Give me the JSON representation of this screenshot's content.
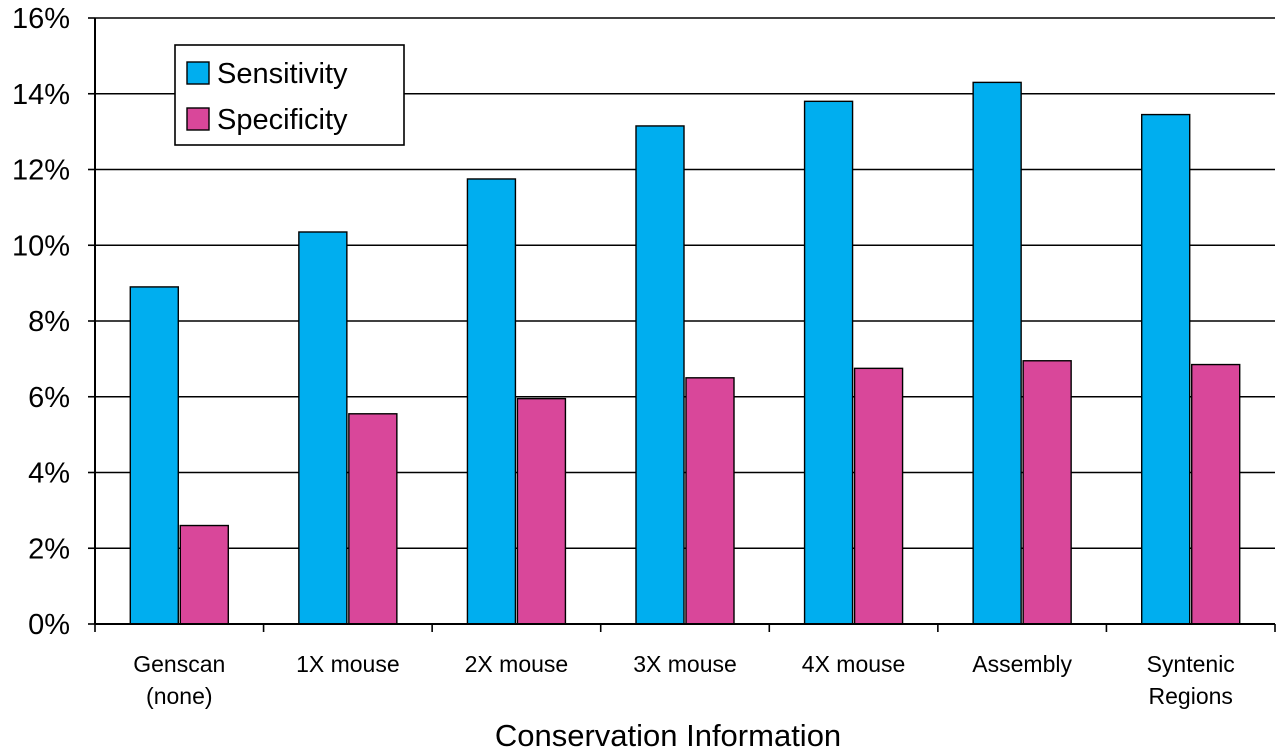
{
  "chart_data": {
    "type": "bar",
    "xlabel": "Conservation Information",
    "ylabel": "",
    "title": "",
    "ylim": [
      0,
      16
    ],
    "y_unit": "%",
    "yticks": [
      "0%",
      "2%",
      "4%",
      "6%",
      "8%",
      "10%",
      "12%",
      "14%",
      "16%"
    ],
    "grid": "horizontal",
    "legend_position": "top-left",
    "categories": [
      [
        "Genscan",
        "(none)"
      ],
      [
        "1X mouse"
      ],
      [
        "2X mouse"
      ],
      [
        "3X mouse"
      ],
      [
        "4X mouse"
      ],
      [
        "Assembly"
      ],
      [
        "Syntenic",
        "Regions"
      ]
    ],
    "series": [
      {
        "name": "Sensitivity",
        "color": "#00aeef",
        "values": [
          8.9,
          10.35,
          11.75,
          13.15,
          13.8,
          14.3,
          13.45
        ]
      },
      {
        "name": "Specificity",
        "color": "#d9479a",
        "values": [
          2.6,
          5.55,
          5.95,
          6.5,
          6.75,
          6.95,
          6.85
        ]
      }
    ]
  }
}
